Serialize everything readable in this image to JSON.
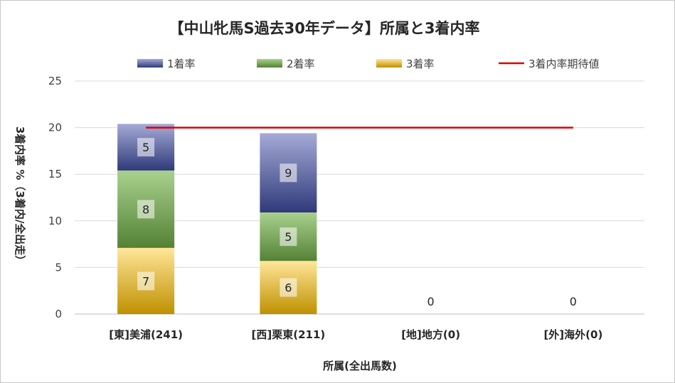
{
  "chart_data": {
    "type": "bar",
    "stacked": true,
    "title": "【中山牝馬S過去30年データ】所属と3着内率",
    "xlabel": "所属(全出馬数)",
    "ylabel": "3着内率 %（3着内/全出走）",
    "ylim": [
      0,
      25
    ],
    "yticks": [
      "0",
      "5",
      "10",
      "15",
      "20",
      "25"
    ],
    "grid": true,
    "legend_position": "top",
    "categories": [
      "[東]美浦(241)",
      "[西]栗東(211)",
      "[地]地方(0)",
      "[外]海外(0)"
    ],
    "series": [
      {
        "name": "3着率",
        "values": [
          7.1,
          5.7,
          0,
          0
        ],
        "labels": [
          "7",
          "6",
          "0",
          "0"
        ],
        "color_top": "#ffe699",
        "color_bottom": "#bf9000"
      },
      {
        "name": "2着率",
        "values": [
          8.3,
          5.2,
          0,
          0
        ],
        "labels": [
          "8",
          "5",
          "",
          ""
        ],
        "color_top": "#a9d18e",
        "color_bottom": "#548235"
      },
      {
        "name": "1着率",
        "values": [
          5.0,
          8.5,
          0,
          0
        ],
        "labels": [
          "5",
          "9",
          "",
          ""
        ],
        "color_top": "#a5aad6",
        "color_bottom": "#2f3a7a"
      }
    ],
    "reference_line": {
      "name": "3着内率期待値",
      "value": 20,
      "color": "#e00000"
    }
  }
}
